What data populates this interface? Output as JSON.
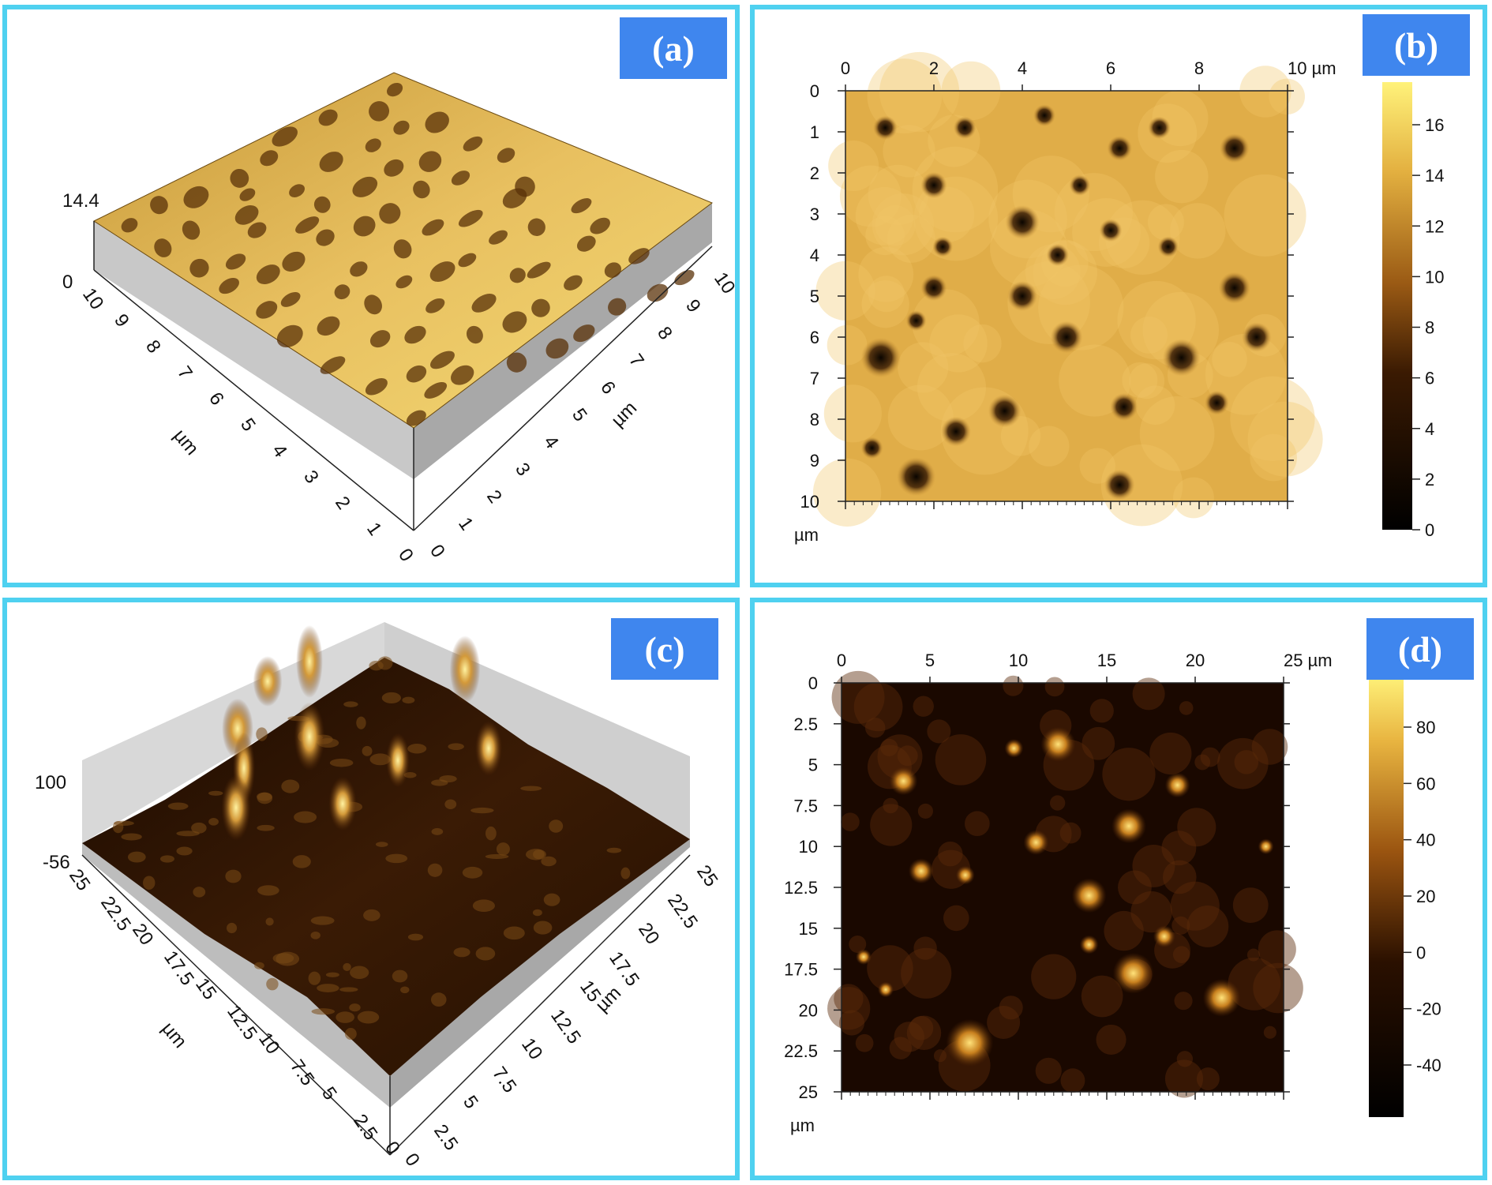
{
  "colors": {
    "frame": "#4fd1f0",
    "label_bg": "#3f86ee",
    "label_text": "#ffffff",
    "colormap_low": "#000000",
    "colormap_mid": "#8a4a10",
    "colormap_high": "#fff070"
  },
  "panels": {
    "a": {
      "label": "(a)",
      "type": "3d-surface",
      "z_max_label": "14.4",
      "z_min_label": "0",
      "left_axis_ticks": [
        "10",
        "9",
        "8",
        "7",
        "6",
        "5",
        "4",
        "3",
        "2",
        "1",
        "0"
      ],
      "right_axis_ticks": [
        "0",
        "1",
        "2",
        "3",
        "4",
        "5",
        "6",
        "7",
        "8",
        "9",
        "10"
      ],
      "unit": "µm"
    },
    "b": {
      "label": "(b)",
      "type": "heightmap",
      "x_ticks": [
        "0",
        "2",
        "4",
        "6",
        "8",
        "10 µm"
      ],
      "y_ticks": [
        "0",
        "1",
        "2",
        "3",
        "4",
        "5",
        "6",
        "7",
        "8",
        "9",
        "10"
      ],
      "unit": "µm",
      "colorbar_ticks": [
        "16",
        "14",
        "12",
        "10",
        "8",
        "6",
        "4",
        "2",
        "0"
      ]
    },
    "c": {
      "label": "(c)",
      "type": "3d-surface",
      "z_max_label": "100",
      "z_min_label": "-56",
      "left_axis_ticks": [
        "25",
        "22.5",
        "20",
        "17.5",
        "15",
        "12.5",
        "10",
        "7.5",
        "5",
        "2.5",
        "0"
      ],
      "right_axis_ticks": [
        "0",
        "2.5",
        "5",
        "7.5",
        "10",
        "12.5",
        "15",
        "17.5",
        "20",
        "22.5",
        "25"
      ],
      "unit": "µm"
    },
    "d": {
      "label": "(d)",
      "type": "heightmap",
      "x_ticks": [
        "0",
        "5",
        "10",
        "15",
        "20",
        "25 µm"
      ],
      "y_ticks": [
        "0",
        "2.5",
        "5",
        "7.5",
        "10",
        "12.5",
        "15",
        "17.5",
        "20",
        "22.5",
        "25"
      ],
      "unit": "µm",
      "colorbar_ticks": [
        "80",
        "60",
        "40",
        "20",
        "0",
        "-20",
        "-40"
      ]
    }
  }
}
